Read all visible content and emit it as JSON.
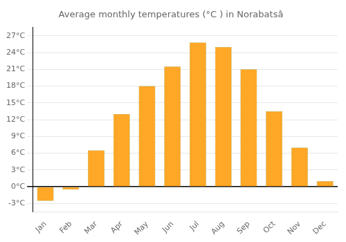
{
  "chart_data": {
    "type": "bar",
    "title": "Average monthly temperatures (°C ) in Norabatsâ",
    "categories": [
      "Jan",
      "Feb",
      "Mar",
      "Apr",
      "May",
      "Jun",
      "Jul",
      "Aug",
      "Sep",
      "Oct",
      "Nov",
      "Dec"
    ],
    "values": [
      -2.5,
      -0.5,
      6.5,
      13.0,
      18.0,
      21.5,
      25.8,
      25.0,
      21.0,
      13.5,
      7.0,
      1.0
    ],
    "color": "#FFA726",
    "ylim": [
      -4.5,
      28.5
    ],
    "yticks": [
      {
        "value": -3,
        "label": "-3°C"
      },
      {
        "value": 0,
        "label": "0°C"
      },
      {
        "value": 3,
        "label": "3°C"
      },
      {
        "value": 6,
        "label": "6°C"
      },
      {
        "value": 9,
        "label": "9°C"
      },
      {
        "value": 12,
        "label": "12°C"
      },
      {
        "value": 15,
        "label": "15°C"
      },
      {
        "value": 18,
        "label": "18°C"
      },
      {
        "value": 21,
        "label": "21°C"
      },
      {
        "value": 24,
        "label": "24°C"
      },
      {
        "value": 27,
        "label": "27°C"
      }
    ],
    "grid": true
  }
}
